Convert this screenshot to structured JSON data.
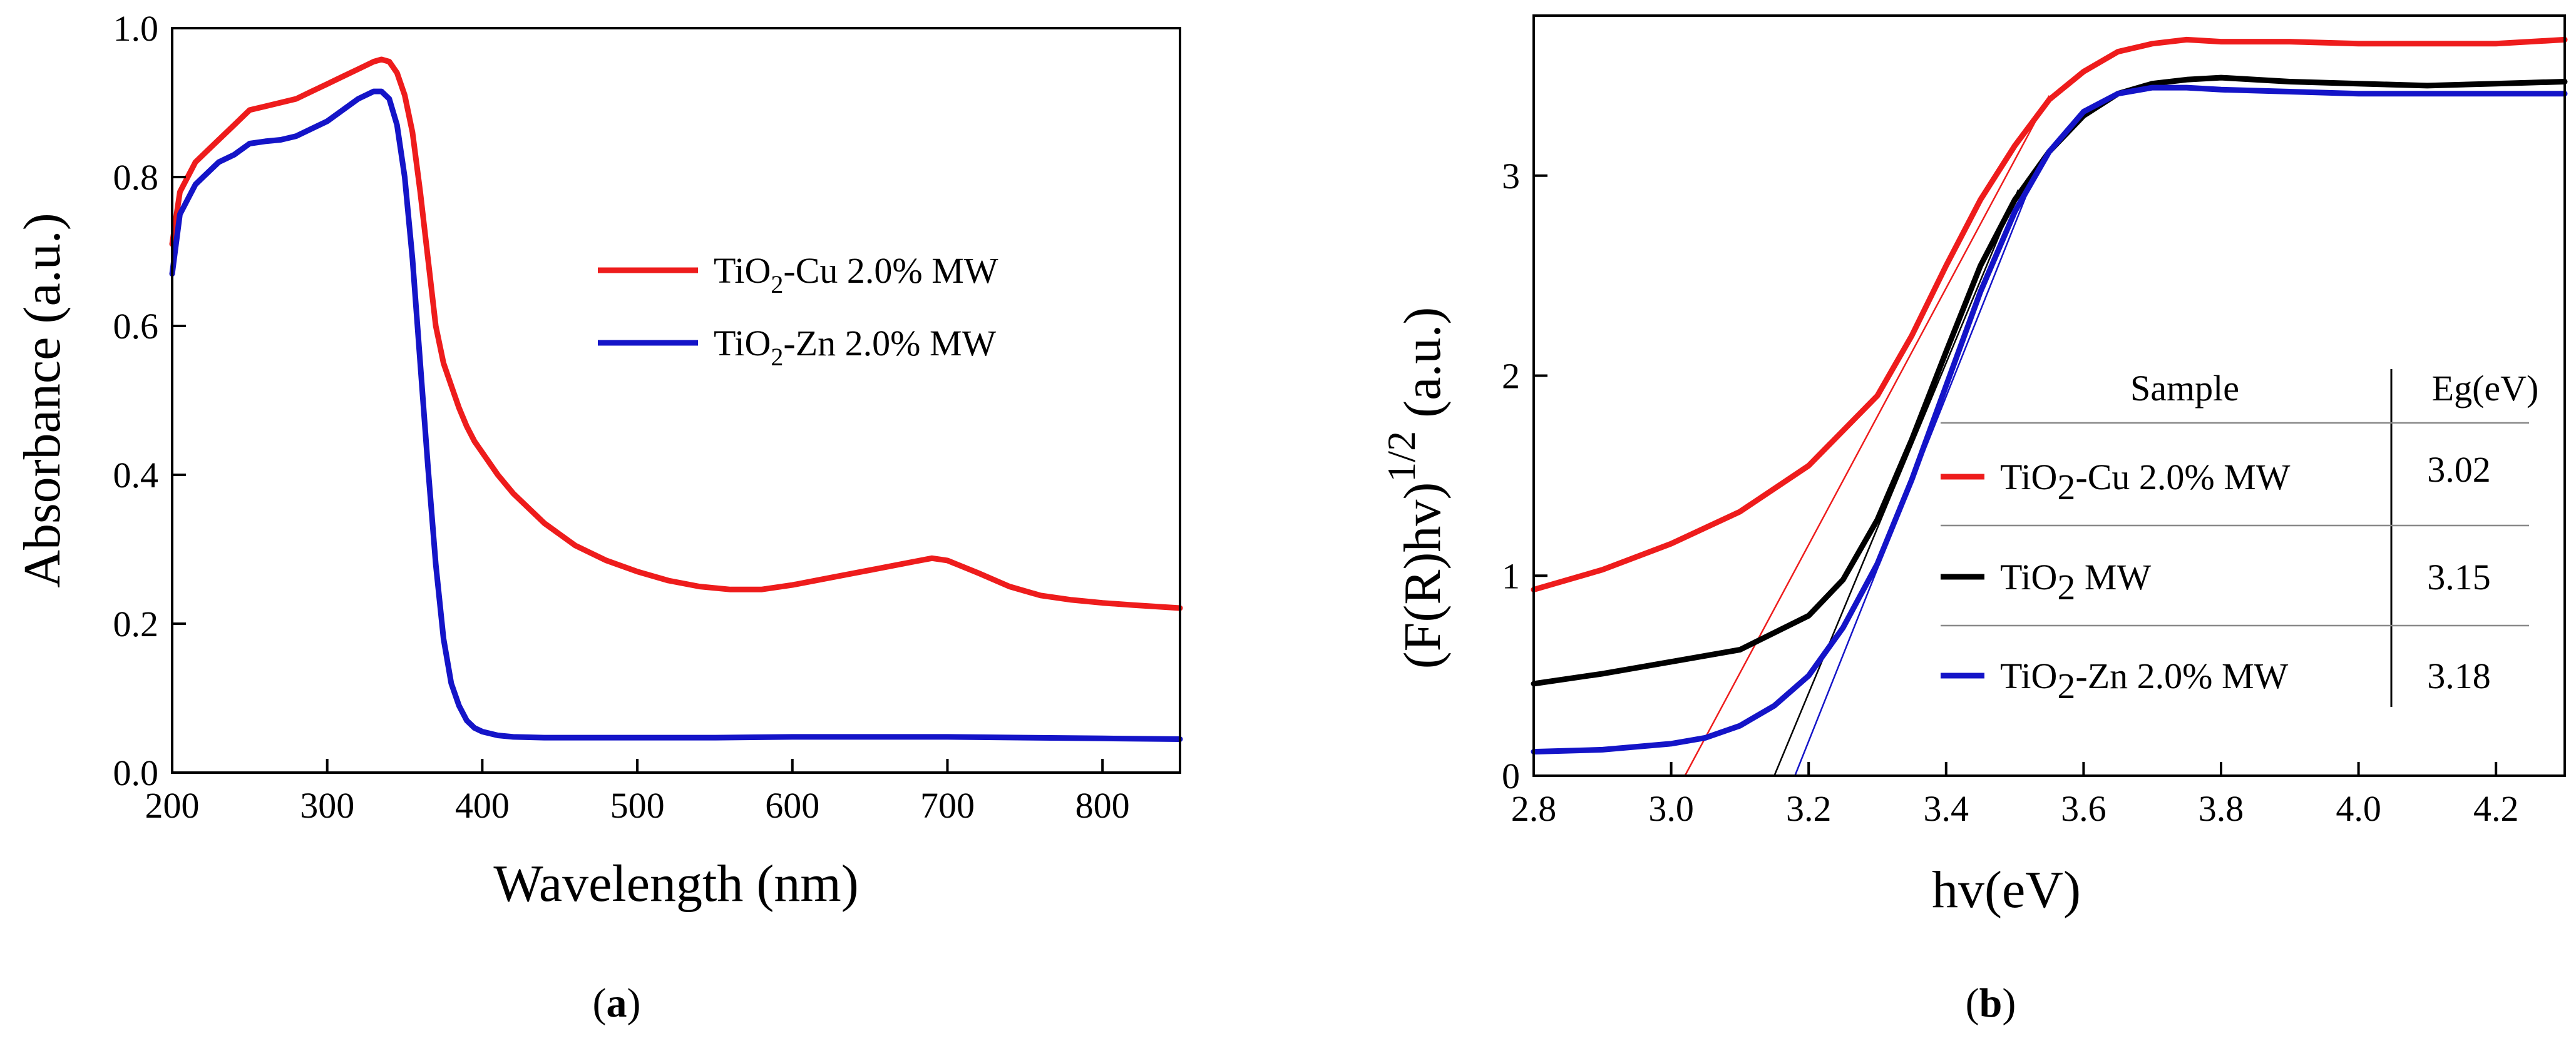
{
  "chart_data": [
    {
      "type": "line",
      "panel_label": "a",
      "title": "",
      "xlabel": "Wavelength (nm)",
      "ylabel": "Absorbance (a.u.)",
      "xlim": [
        200,
        850
      ],
      "ylim": [
        0.0,
        1.0
      ],
      "xticks": [
        "200",
        "300",
        "400",
        "500",
        "600",
        "700",
        "800"
      ],
      "yticks": [
        "0.0",
        "0.2",
        "0.4",
        "0.6",
        "0.8",
        "1.0"
      ],
      "grid": false,
      "legend_position": "center-right",
      "series": [
        {
          "name": "TiO2-Cu 2.0% MW",
          "name_parts": {
            "pre": "TiO",
            "sub": "2",
            "post": "-Cu 2.0% MW"
          },
          "color": "#ee1c1c",
          "x": [
            200,
            205,
            210,
            215,
            220,
            230,
            240,
            250,
            260,
            270,
            280,
            290,
            300,
            310,
            320,
            330,
            335,
            340,
            345,
            350,
            355,
            360,
            365,
            370,
            375,
            380,
            385,
            390,
            395,
            400,
            410,
            420,
            440,
            460,
            480,
            500,
            520,
            540,
            560,
            580,
            600,
            620,
            640,
            660,
            680,
            690,
            700,
            720,
            740,
            760,
            780,
            800,
            820,
            850
          ],
          "y": [
            0.71,
            0.78,
            0.8,
            0.82,
            0.83,
            0.85,
            0.87,
            0.89,
            0.895,
            0.9,
            0.905,
            0.915,
            0.925,
            0.935,
            0.945,
            0.955,
            0.958,
            0.955,
            0.94,
            0.91,
            0.86,
            0.78,
            0.69,
            0.6,
            0.55,
            0.52,
            0.49,
            0.465,
            0.445,
            0.43,
            0.4,
            0.375,
            0.335,
            0.305,
            0.285,
            0.27,
            0.258,
            0.25,
            0.246,
            0.246,
            0.252,
            0.26,
            0.268,
            0.276,
            0.284,
            0.288,
            0.285,
            0.268,
            0.25,
            0.238,
            0.232,
            0.228,
            0.225,
            0.221
          ]
        },
        {
          "name": "TiO2-Zn 2.0% MW",
          "name_parts": {
            "pre": "TiO",
            "sub": "2",
            "post": "-Zn 2.0% MW"
          },
          "color": "#1414c8",
          "x": [
            200,
            205,
            210,
            215,
            220,
            230,
            240,
            250,
            260,
            270,
            280,
            290,
            300,
            310,
            320,
            330,
            335,
            340,
            345,
            350,
            355,
            360,
            365,
            370,
            375,
            380,
            385,
            390,
            395,
            400,
            410,
            420,
            440,
            460,
            500,
            550,
            600,
            650,
            700,
            750,
            800,
            850
          ],
          "y": [
            0.67,
            0.75,
            0.77,
            0.79,
            0.8,
            0.82,
            0.83,
            0.845,
            0.848,
            0.85,
            0.855,
            0.865,
            0.875,
            0.89,
            0.905,
            0.915,
            0.915,
            0.905,
            0.87,
            0.8,
            0.69,
            0.55,
            0.41,
            0.28,
            0.18,
            0.12,
            0.09,
            0.07,
            0.06,
            0.055,
            0.05,
            0.048,
            0.047,
            0.047,
            0.047,
            0.047,
            0.048,
            0.048,
            0.048,
            0.047,
            0.046,
            0.045
          ]
        }
      ]
    },
    {
      "type": "line",
      "panel_label": "b",
      "title": "",
      "xlabel": "hv(eV)",
      "ylabel": "(F(R)hv)",
      "ylabel_exponent": "1/2",
      "ylabel_suffix": " (a.u.)",
      "xlim": [
        2.8,
        4.3
      ],
      "ylim": [
        0,
        3.8
      ],
      "xticks": [
        "2.8",
        "3.0",
        "3.2",
        "3.4",
        "3.6",
        "3.8",
        "4.0",
        "4.2"
      ],
      "yticks": [
        "0",
        "1",
        "2",
        "3"
      ],
      "grid": false,
      "series": [
        {
          "name": "TiO2-Cu 2.0% MW",
          "name_parts": {
            "pre": "TiO",
            "sub": "2",
            "post": "-Cu 2.0% MW"
          },
          "color": "#ee1c1c",
          "x": [
            2.8,
            2.9,
            3.0,
            3.1,
            3.2,
            3.3,
            3.35,
            3.4,
            3.45,
            3.5,
            3.55,
            3.6,
            3.65,
            3.7,
            3.75,
            3.8,
            3.9,
            4.0,
            4.1,
            4.2,
            4.3
          ],
          "y": [
            0.93,
            1.03,
            1.16,
            1.32,
            1.55,
            1.9,
            2.2,
            2.55,
            2.88,
            3.15,
            3.38,
            3.52,
            3.62,
            3.66,
            3.68,
            3.67,
            3.67,
            3.66,
            3.66,
            3.66,
            3.68
          ]
        },
        {
          "name": "TiO2 MW",
          "name_parts": {
            "pre": "TiO",
            "sub": "2",
            "post": " MW"
          },
          "color": "#000000",
          "x": [
            2.8,
            2.9,
            3.0,
            3.1,
            3.2,
            3.25,
            3.3,
            3.35,
            3.4,
            3.45,
            3.5,
            3.55,
            3.6,
            3.65,
            3.7,
            3.75,
            3.8,
            3.9,
            4.0,
            4.1,
            4.2,
            4.3
          ],
          "y": [
            0.46,
            0.51,
            0.57,
            0.63,
            0.8,
            0.98,
            1.28,
            1.68,
            2.12,
            2.55,
            2.88,
            3.12,
            3.3,
            3.41,
            3.46,
            3.48,
            3.49,
            3.47,
            3.46,
            3.45,
            3.46,
            3.47
          ]
        },
        {
          "name": "TiO2-Zn 2.0% MW",
          "name_parts": {
            "pre": "TiO",
            "sub": "2",
            "post": "-Zn 2.0% MW"
          },
          "color": "#1414c8",
          "x": [
            2.8,
            2.9,
            3.0,
            3.05,
            3.1,
            3.15,
            3.2,
            3.25,
            3.3,
            3.35,
            3.4,
            3.45,
            3.5,
            3.55,
            3.6,
            3.65,
            3.7,
            3.75,
            3.8,
            3.9,
            4.0,
            4.1,
            4.2,
            4.3
          ],
          "y": [
            0.12,
            0.13,
            0.16,
            0.19,
            0.25,
            0.35,
            0.5,
            0.74,
            1.06,
            1.48,
            1.95,
            2.42,
            2.82,
            3.12,
            3.32,
            3.41,
            3.44,
            3.44,
            3.43,
            3.42,
            3.41,
            3.41,
            3.41,
            3.41
          ]
        }
      ],
      "tangent_lines": [
        {
          "series": "TiO2-Cu 2.0% MW",
          "color": "#ee1c1c",
          "x": [
            3.02,
            3.55
          ],
          "y": [
            0.0,
            3.4
          ]
        },
        {
          "series": "TiO2 MW",
          "color": "#000000",
          "x": [
            3.15,
            3.505
          ],
          "y": [
            0.0,
            2.93
          ]
        },
        {
          "series": "TiO2-Zn 2.0% MW",
          "color": "#1414c8",
          "x": [
            3.18,
            3.52
          ],
          "y": [
            0.0,
            2.93
          ]
        }
      ],
      "table": {
        "headers": [
          "Sample",
          "Eg(eV)"
        ],
        "rows": [
          {
            "label_parts": {
              "pre": "TiO",
              "sub": "2",
              "post": "-Cu 2.0% MW"
            },
            "color": "#ee1c1c",
            "eg": "3.02"
          },
          {
            "label_parts": {
              "pre": "TiO",
              "sub": "2",
              "post": " MW"
            },
            "color": "#000000",
            "eg": "3.15"
          },
          {
            "label_parts": {
              "pre": "TiO",
              "sub": "2",
              "post": "-Zn 2.0% MW"
            },
            "color": "#1414c8",
            "eg": "3.18"
          }
        ]
      }
    }
  ]
}
